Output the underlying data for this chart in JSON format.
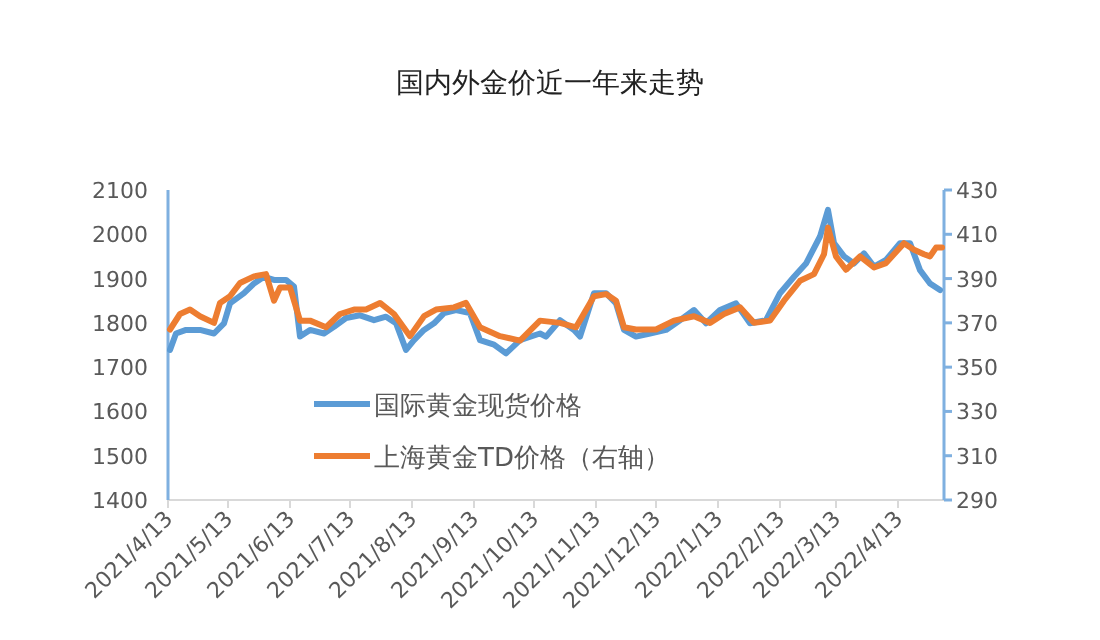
{
  "chart_data": {
    "type": "line",
    "title": "国内外金价近一年来走势",
    "xlim": [
      "2021-04-13",
      "2022-05-06"
    ],
    "xticks": [
      {
        "value": "2021-04-13",
        "label": "2021/4/13"
      },
      {
        "value": "2021-05-13",
        "label": "2021/5/13"
      },
      {
        "value": "2021-06-13",
        "label": "2021/6/13"
      },
      {
        "value": "2021-07-13",
        "label": "2021/7/13"
      },
      {
        "value": "2021-08-13",
        "label": "2021/8/13"
      },
      {
        "value": "2021-09-13",
        "label": "2021/9/13"
      },
      {
        "value": "2021-10-13",
        "label": "2021/10/13"
      },
      {
        "value": "2021-11-13",
        "label": "2021/11/13"
      },
      {
        "value": "2021-12-13",
        "label": "2021/12/13"
      },
      {
        "value": "2022-01-13",
        "label": "2022/1/13"
      },
      {
        "value": "2022-02-13",
        "label": "2022/2/13"
      },
      {
        "value": "2022-03-13",
        "label": "2022/3/13"
      },
      {
        "value": "2022-04-13",
        "label": "2022/4/13"
      }
    ],
    "ylim": [
      1400,
      2100
    ],
    "yticks": [
      1400,
      1500,
      1600,
      1700,
      1800,
      1900,
      2000,
      2100
    ],
    "y2lim": [
      290,
      430
    ],
    "y2ticks": [
      290,
      310,
      330,
      350,
      370,
      390,
      410,
      430
    ],
    "legend": "bottom left",
    "grid": false,
    "marker": "none",
    "line_style": "solid",
    "series": [
      {
        "name": "国际黄金现货价格",
        "color": "#5b9bd5",
        "x": [
          "2021-04-14",
          "2021-04-17",
          "2021-04-22",
          "2021-04-29",
          "2021-05-06",
          "2021-05-11",
          "2021-05-14",
          "2021-05-21",
          "2021-05-26",
          "2021-05-31",
          "2021-06-05",
          "2021-06-08",
          "2021-06-11",
          "2021-06-15",
          "2021-06-18",
          "2021-06-23",
          "2021-06-30",
          "2021-07-05",
          "2021-07-11",
          "2021-07-18",
          "2021-07-25",
          "2021-07-31",
          "2021-08-05",
          "2021-08-10",
          "2021-08-14",
          "2021-08-19",
          "2021-08-24",
          "2021-08-29",
          "2021-09-04",
          "2021-09-11",
          "2021-09-16",
          "2021-09-23",
          "2021-09-29",
          "2021-10-06",
          "2021-10-16",
          "2021-10-19",
          "2021-10-26",
          "2021-11-02",
          "2021-11-05",
          "2021-11-12",
          "2021-11-18",
          "2021-11-23",
          "2021-11-27",
          "2021-12-03",
          "2021-12-10",
          "2021-12-18",
          "2021-12-25",
          "2022-01-01",
          "2022-01-07",
          "2022-01-14",
          "2022-01-22",
          "2022-01-29",
          "2022-02-06",
          "2022-02-13",
          "2022-02-20",
          "2022-02-26",
          "2022-03-05",
          "2022-03-09",
          "2022-03-12",
          "2022-03-17",
          "2022-03-22",
          "2022-03-27",
          "2022-04-01",
          "2022-04-07",
          "2022-04-14",
          "2022-04-19",
          "2022-04-24",
          "2022-04-29",
          "2022-05-04"
        ],
        "values": [
          1739,
          1776,
          1784,
          1784,
          1776,
          1799,
          1844,
          1867,
          1889,
          1904,
          1897,
          1897,
          1897,
          1882,
          1769,
          1784,
          1776,
          1791,
          1811,
          1817,
          1806,
          1814,
          1799,
          1739,
          1761,
          1784,
          1799,
          1822,
          1829,
          1822,
          1761,
          1751,
          1731,
          1761,
          1776,
          1769,
          1806,
          1784,
          1769,
          1867,
          1867,
          1844,
          1784,
          1769,
          1776,
          1784,
          1806,
          1829,
          1799,
          1829,
          1844,
          1799,
          1806,
          1867,
          1904,
          1934,
          1995,
          2055,
          1980,
          1950,
          1934,
          1957,
          1927,
          1942,
          1980,
          1980,
          1919,
          1889,
          1874
        ]
      },
      {
        "name": "上海黄金TD价格（右轴）",
        "color": "#ed7d31",
        "axis": "y2",
        "x": [
          "2021-04-14",
          "2021-04-19",
          "2021-04-24",
          "2021-04-29",
          "2021-05-06",
          "2021-05-09",
          "2021-05-14",
          "2021-05-19",
          "2021-05-26",
          "2021-06-01",
          "2021-06-05",
          "2021-06-08",
          "2021-06-13",
          "2021-06-18",
          "2021-06-23",
          "2021-07-01",
          "2021-07-08",
          "2021-07-15",
          "2021-07-21",
          "2021-07-28",
          "2021-08-04",
          "2021-08-12",
          "2021-08-19",
          "2021-08-25",
          "2021-09-03",
          "2021-09-09",
          "2021-09-16",
          "2021-09-26",
          "2021-10-06",
          "2021-10-16",
          "2021-10-26",
          "2021-11-03",
          "2021-11-12",
          "2021-11-18",
          "2021-11-23",
          "2021-11-27",
          "2021-12-03",
          "2021-12-13",
          "2021-12-22",
          "2022-01-01",
          "2022-01-09",
          "2022-01-16",
          "2022-01-24",
          "2022-01-31",
          "2022-02-08",
          "2022-02-15",
          "2022-02-23",
          "2022-03-02",
          "2022-03-07",
          "2022-03-09",
          "2022-03-13",
          "2022-03-18",
          "2022-03-25",
          "2022-04-01",
          "2022-04-07",
          "2022-04-16",
          "2022-04-21",
          "2022-04-26",
          "2022-04-29",
          "2022-05-02",
          "2022-05-05"
        ],
        "values": [
          367,
          374,
          376,
          373,
          370,
          379,
          382,
          388,
          391,
          392,
          380,
          386,
          386,
          371,
          371,
          368,
          374,
          376,
          376,
          379,
          374,
          364,
          373,
          376,
          377,
          379,
          368,
          364,
          362,
          371,
          370,
          368,
          382,
          383,
          380,
          368,
          367,
          367,
          371,
          373,
          370,
          374,
          377,
          370,
          371,
          380,
          389,
          392,
          401,
          413,
          400,
          394,
          400,
          395,
          397,
          406,
          403,
          401,
          400,
          404,
          404
        ]
      }
    ]
  }
}
